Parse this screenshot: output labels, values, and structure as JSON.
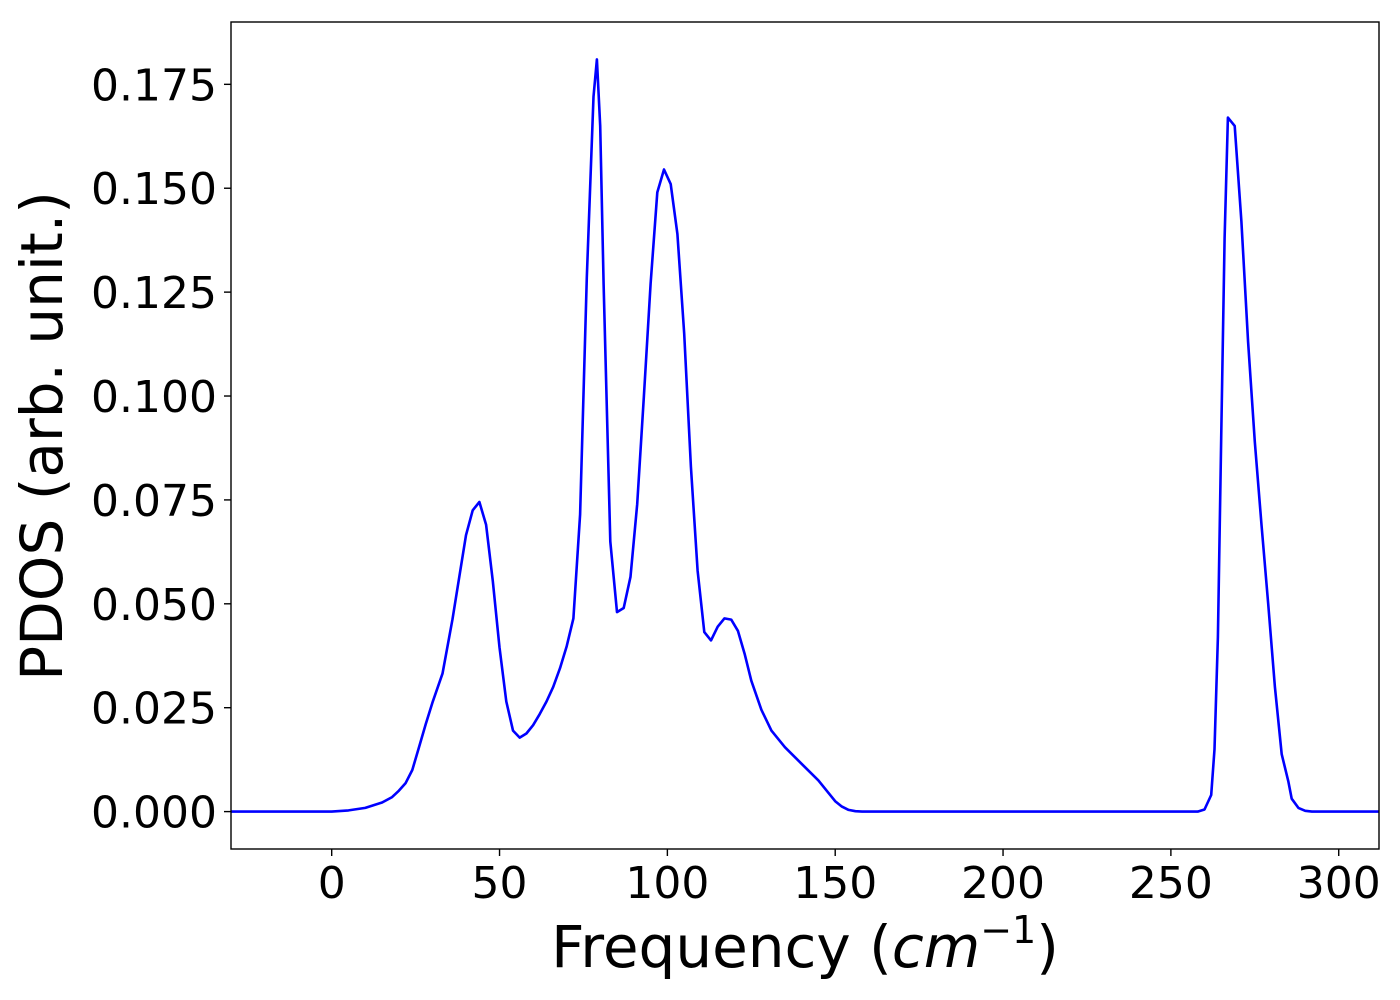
{
  "chart_data": {
    "type": "line",
    "title": "",
    "xlabel": "Frequency (",
    "xlabel_math": "cm",
    "xlabel_sup": "−1",
    "xlabel_close": ")",
    "ylabel": "PDOS (arb. unit.)",
    "xlim": [
      -30,
      312
    ],
    "ylim": [
      -0.009,
      0.19
    ],
    "grid": false,
    "legend": "none",
    "xticks": [
      0,
      50,
      100,
      150,
      200,
      250,
      300
    ],
    "xtick_labels": [
      "0",
      "50",
      "100",
      "150",
      "200",
      "250",
      "300"
    ],
    "yticks": [
      0,
      0.025,
      0.05,
      0.075,
      0.1,
      0.125,
      0.15,
      0.175
    ],
    "ytick_labels": [
      "0.000",
      "0.025",
      "0.050",
      "0.075",
      "0.100",
      "0.125",
      "0.150",
      "0.175"
    ],
    "series": [
      {
        "color": "#0000ff",
        "x": [
          -30,
          0,
          5,
          10,
          15,
          18,
          20,
          22,
          24,
          26,
          28,
          30,
          33,
          36,
          38,
          40,
          42,
          44,
          46,
          48,
          50,
          52,
          54,
          56,
          58,
          60,
          62,
          64,
          66,
          68,
          70,
          72,
          74,
          76,
          78,
          79,
          80,
          81,
          83,
          85,
          87,
          89,
          91,
          93,
          95,
          97,
          99,
          101,
          103,
          105,
          107,
          109,
          111,
          113,
          115,
          117,
          119,
          121,
          123,
          125,
          128,
          131,
          135,
          140,
          145,
          148,
          150,
          152,
          154,
          156,
          158,
          160,
          200,
          258,
          260,
          262,
          263,
          264,
          265,
          266,
          267,
          269,
          271,
          273,
          275,
          277,
          279,
          281,
          283,
          285,
          286,
          288,
          290,
          292,
          312
        ],
        "y": [
          0.0,
          0.0,
          0.0003,
          0.0009,
          0.0022,
          0.0035,
          0.005,
          0.0068,
          0.01,
          0.0155,
          0.021,
          0.0262,
          0.0332,
          0.0463,
          0.0565,
          0.0665,
          0.0725,
          0.0745,
          0.069,
          0.0555,
          0.0395,
          0.0265,
          0.0195,
          0.0178,
          0.0188,
          0.0208,
          0.0235,
          0.0265,
          0.03,
          0.0345,
          0.0398,
          0.0465,
          0.0715,
          0.1285,
          0.172,
          0.181,
          0.165,
          0.127,
          0.065,
          0.048,
          0.049,
          0.0565,
          0.074,
          0.1,
          0.127,
          0.149,
          0.1545,
          0.151,
          0.139,
          0.115,
          0.083,
          0.058,
          0.0432,
          0.0412,
          0.0445,
          0.0465,
          0.0462,
          0.0435,
          0.038,
          0.0315,
          0.0245,
          0.0195,
          0.0155,
          0.0115,
          0.0075,
          0.0045,
          0.0025,
          0.0012,
          0.0004,
          0.0001,
          0.0,
          0.0,
          0.0,
          0.0,
          0.0005,
          0.004,
          0.015,
          0.042,
          0.09,
          0.138,
          0.167,
          0.165,
          0.142,
          0.113,
          0.089,
          0.069,
          0.05,
          0.03,
          0.0138,
          0.0072,
          0.0031,
          0.0009,
          0.0002,
          0.0,
          0.0
        ]
      }
    ]
  }
}
